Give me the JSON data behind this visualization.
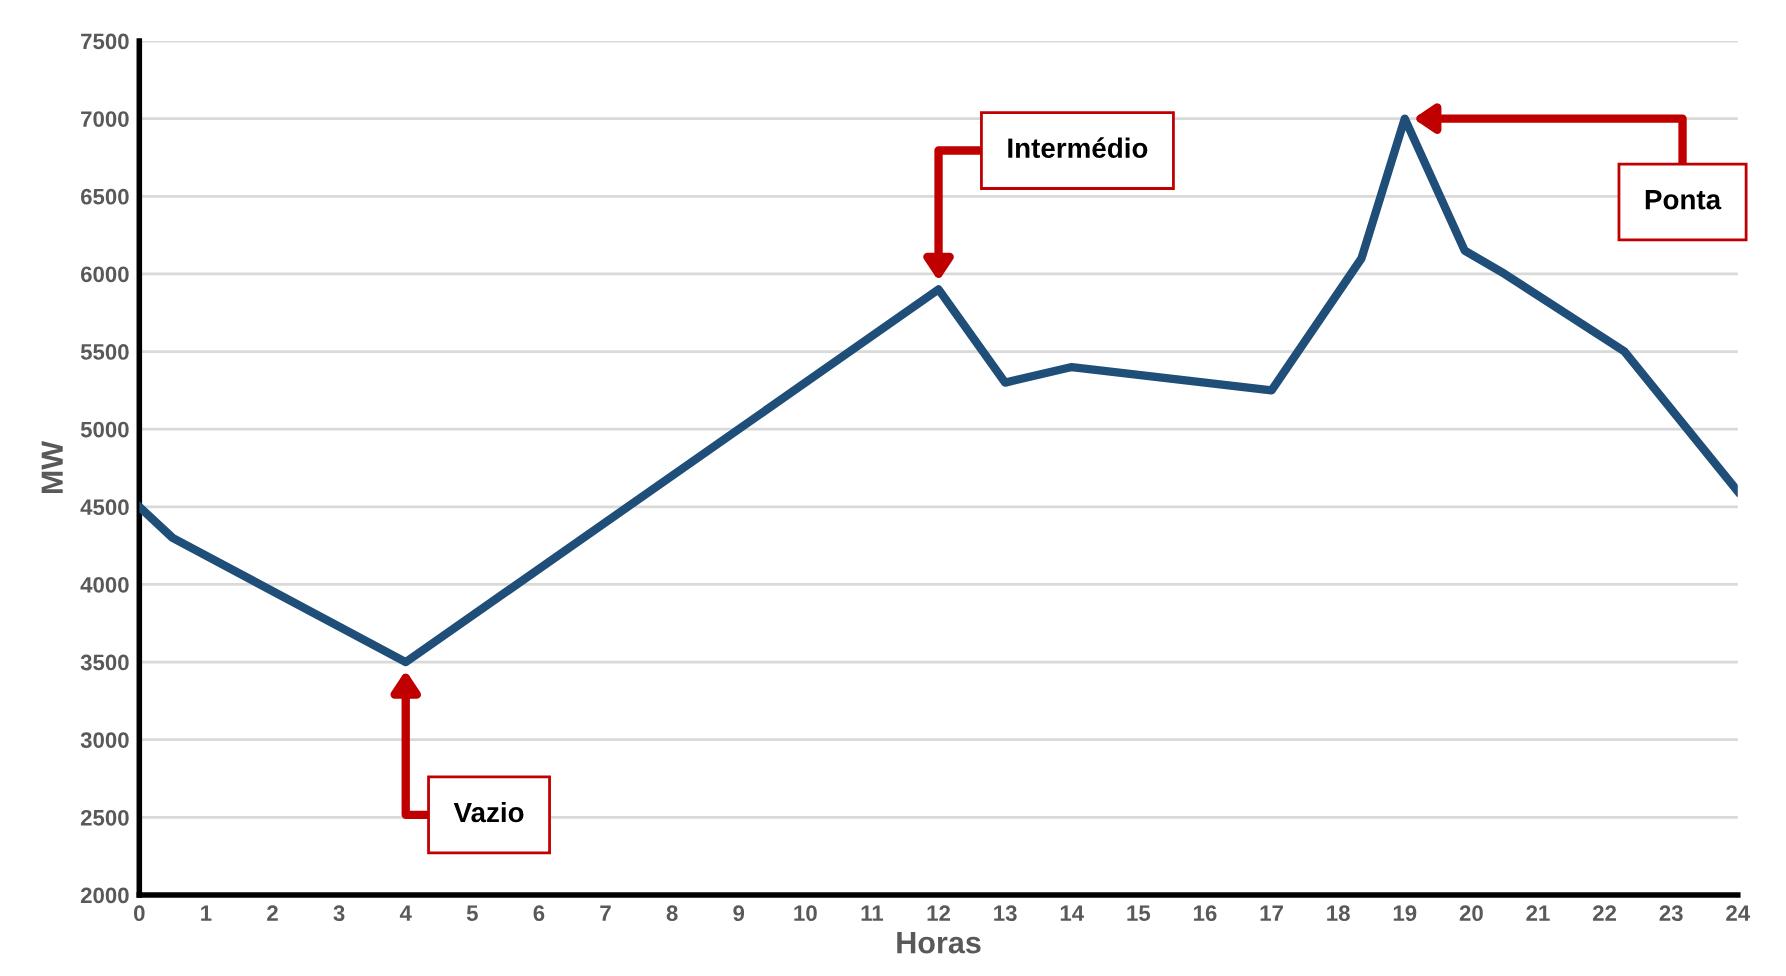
{
  "chart_data": {
    "type": "line",
    "xlabel": "Horas",
    "ylabel": "MW",
    "x": [
      0,
      0.5,
      4,
      12,
      13,
      14,
      15,
      16,
      17,
      18.35,
      19,
      19.9,
      20.5,
      22.3,
      24
    ],
    "series": [
      {
        "color": "#1f4e79",
        "values": [
          4500,
          4300,
          3500,
          5900,
          5300,
          5400,
          5350,
          5300,
          5250,
          6100,
          7000,
          6150,
          6000,
          5500,
          4600
        ]
      }
    ],
    "xlim": [
      0,
      24
    ],
    "xticks": [
      0,
      1,
      2,
      3,
      4,
      5,
      6,
      7,
      8,
      9,
      10,
      11,
      12,
      13,
      14,
      15,
      16,
      17,
      18,
      19,
      20,
      21,
      22,
      23,
      24
    ],
    "ylim": [
      2000,
      7500
    ],
    "yticks": [
      2000,
      2500,
      3000,
      3500,
      4000,
      4500,
      5000,
      5500,
      6000,
      6500,
      7000,
      7500
    ],
    "grid": "y",
    "marker": "none",
    "line_style": "solid",
    "annotations": [
      {
        "text": "Vazio",
        "x": 4,
        "y": 3500
      },
      {
        "text": "Intermédio",
        "x": 12,
        "y": 5900
      },
      {
        "text": "Ponta",
        "x": 19,
        "y": 7000
      }
    ]
  }
}
